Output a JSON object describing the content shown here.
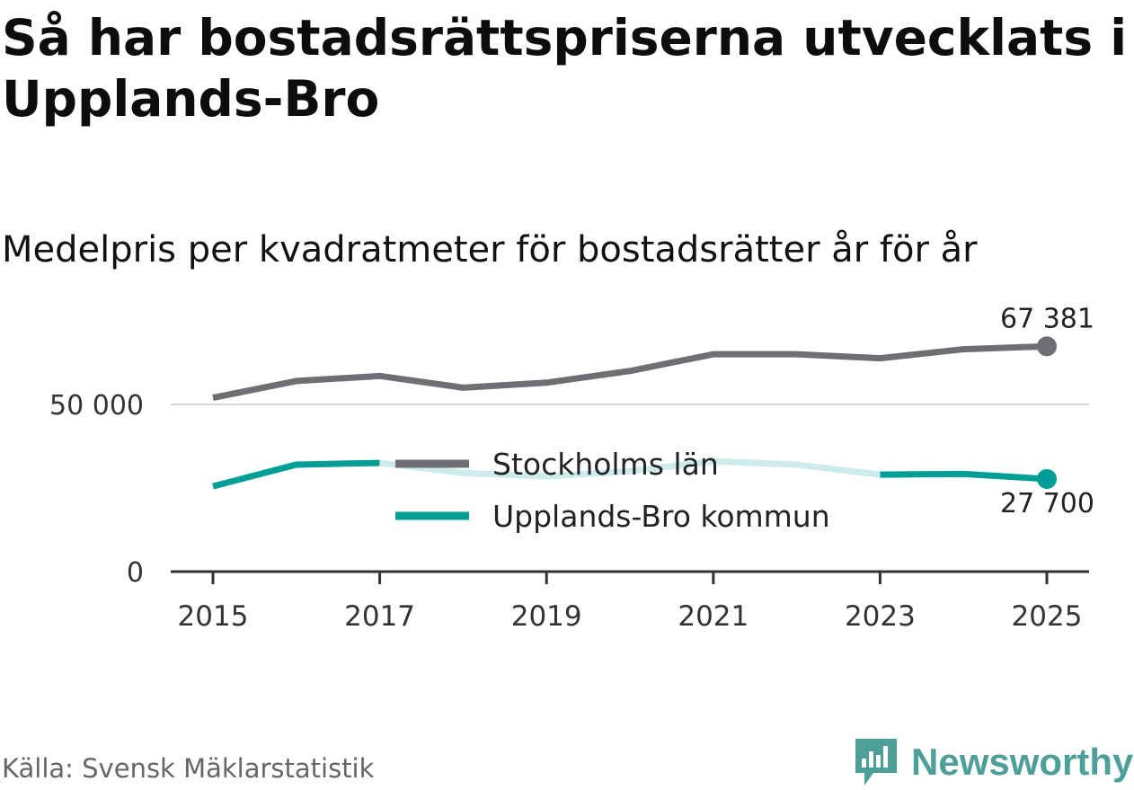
{
  "title": "Så har bostadsrättspriserna utvecklats i Upplands-Bro",
  "subtitle": "Medelpris per kvadratmeter för bostadsrätter år för år",
  "source": "Källa: Svensk Mäklarstatistik",
  "brand": {
    "name": "Newsworthy",
    "icon": "bar-chart-speech-bubble-icon",
    "color": "#4e9f9a"
  },
  "chart_data": {
    "type": "line",
    "x": [
      2015,
      2016,
      2017,
      2018,
      2019,
      2020,
      2021,
      2022,
      2023,
      2024,
      2025
    ],
    "x_ticks": [
      "2015",
      "2017",
      "2019",
      "2021",
      "2023",
      "2025"
    ],
    "y_ticks": [
      {
        "value": 0,
        "label": "0"
      },
      {
        "value": 50000,
        "label": "50 000"
      }
    ],
    "ylim": [
      0,
      68000
    ],
    "grid": "horizontal at 50 000",
    "legend_position": "center",
    "series": [
      {
        "name": "Stockholms län",
        "color": "#6e6e73",
        "values": [
          52000,
          57000,
          58500,
          55000,
          56500,
          60000,
          65000,
          65000,
          63800,
          66500,
          67381
        ],
        "end_label": "67 381"
      },
      {
        "name": "Upplands-Bro kommun",
        "color": "#009e96",
        "faded_color": "#cdebea",
        "faded_range": [
          2017,
          2023
        ],
        "values": [
          25500,
          32000,
          32500,
          29500,
          28500,
          30000,
          33000,
          32000,
          29000,
          29200,
          27700
        ],
        "end_label": "27 700"
      }
    ]
  }
}
